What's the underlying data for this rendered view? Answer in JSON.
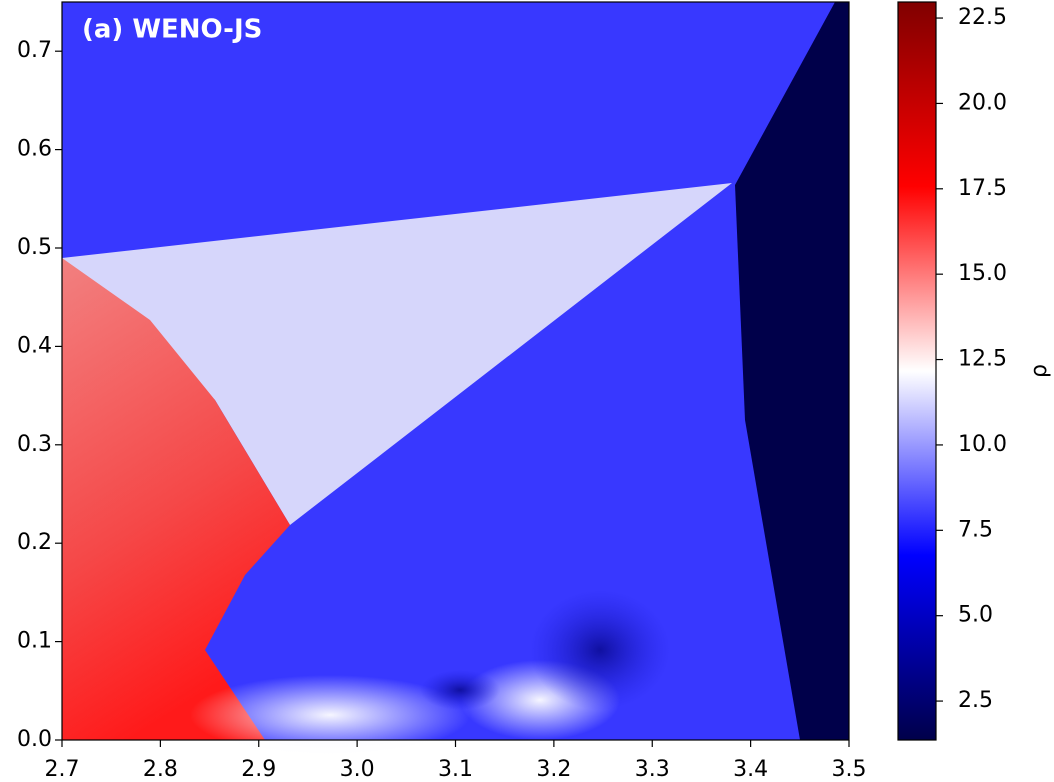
{
  "chart_data": {
    "type": "heatmap",
    "title": "(a) WENO-JS",
    "xlim": [
      2.7,
      3.5
    ],
    "xticks": [
      2.7,
      2.8,
      2.9,
      {
        "value": 3,
        "label": "3.0"
      },
      3.1,
      3.2,
      3.3,
      3.4,
      3.5
    ],
    "ylim": [
      0,
      0.75
    ],
    "yticks": [
      {
        "value": 0,
        "label": "0.0"
      },
      0.1,
      0.2,
      0.3,
      0.4,
      0.5,
      0.6,
      0.7
    ],
    "colorbar": {
      "label": "ρ",
      "lim": [
        1.36,
        22.97
      ],
      "colormap": "seismic",
      "ticks": [
        2.5,
        {
          "value": 5,
          "label": "5.0"
        },
        7.5,
        {
          "value": 10,
          "label": "10.0"
        },
        12.5,
        {
          "value": 15,
          "label": "15.0"
        },
        17.5,
        {
          "value": 20,
          "label": "20.0"
        },
        22.5
      ]
    }
  }
}
